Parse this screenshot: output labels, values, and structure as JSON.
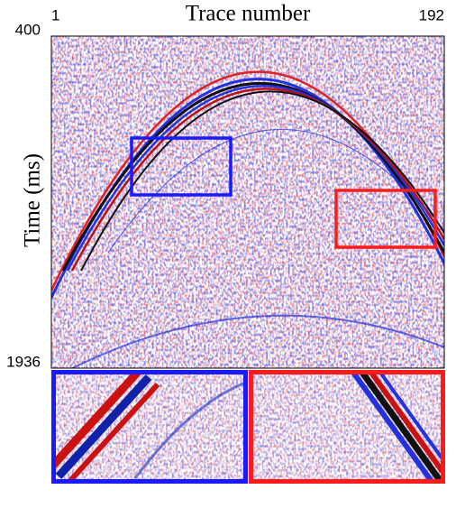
{
  "chart_data": {
    "type": "image",
    "xlabel": "Trace number",
    "ylabel": "Time (ms)",
    "xlim": [
      1,
      192
    ],
    "xticks": [
      1,
      192
    ],
    "ylim": [
      1936,
      400
    ],
    "yticks": [
      400,
      1936
    ]
  }
}
